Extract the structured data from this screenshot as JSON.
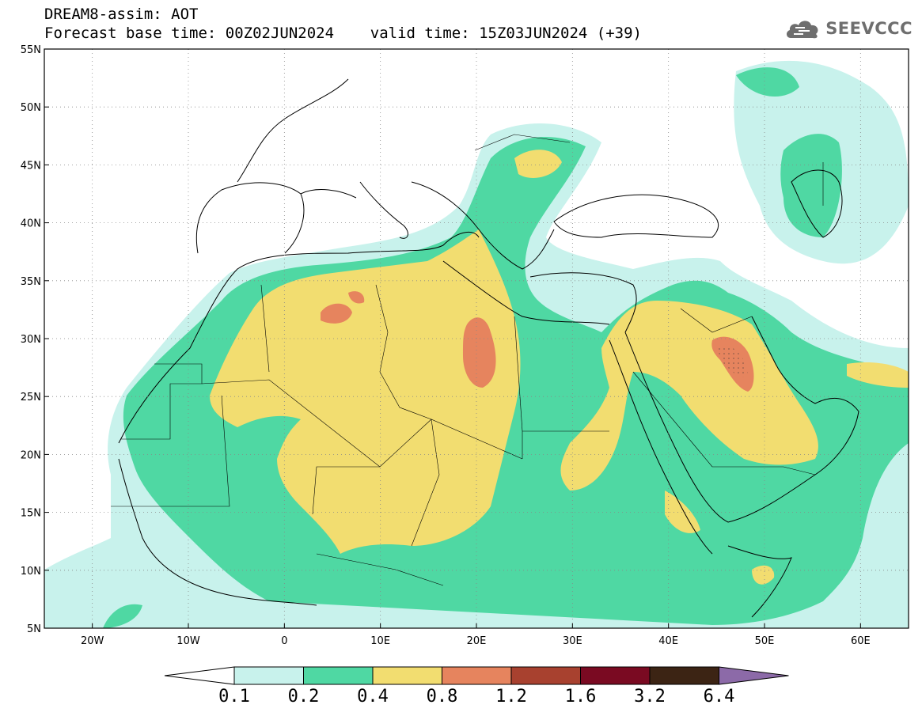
{
  "title": {
    "line1": "DREAM8-assim: AOT",
    "line2": "Forecast base time: 00Z02JUN2024    valid time: 15Z03JUN2024 (+39)"
  },
  "logo": {
    "text": "SEEVCCC",
    "icon": "cloud-icon"
  },
  "map": {
    "lon_range": [
      -25,
      65
    ],
    "lat_range": [
      5,
      55
    ],
    "y_ticks": [
      "55N",
      "50N",
      "45N",
      "40N",
      "35N",
      "30N",
      "25N",
      "20N",
      "15N",
      "10N",
      "5N"
    ],
    "x_ticks": [
      "20W",
      "10W",
      "0",
      "10E",
      "20E",
      "30E",
      "40E",
      "50E",
      "60E"
    ],
    "grid": "dotted",
    "field": "Aerosol Optical Thickness"
  },
  "colorbar": {
    "labels": [
      "0.1",
      "0.2",
      "0.4",
      "0.8",
      "1.2",
      "1.6",
      "3.2",
      "6.4"
    ],
    "colors": [
      "#c8f2ec",
      "#4fd8a3",
      "#f2dd70",
      "#e6845e",
      "#a8412f",
      "#7a0a22",
      "#3c2414",
      "#8c6aa8"
    ],
    "under_color": "#ffffff"
  }
}
